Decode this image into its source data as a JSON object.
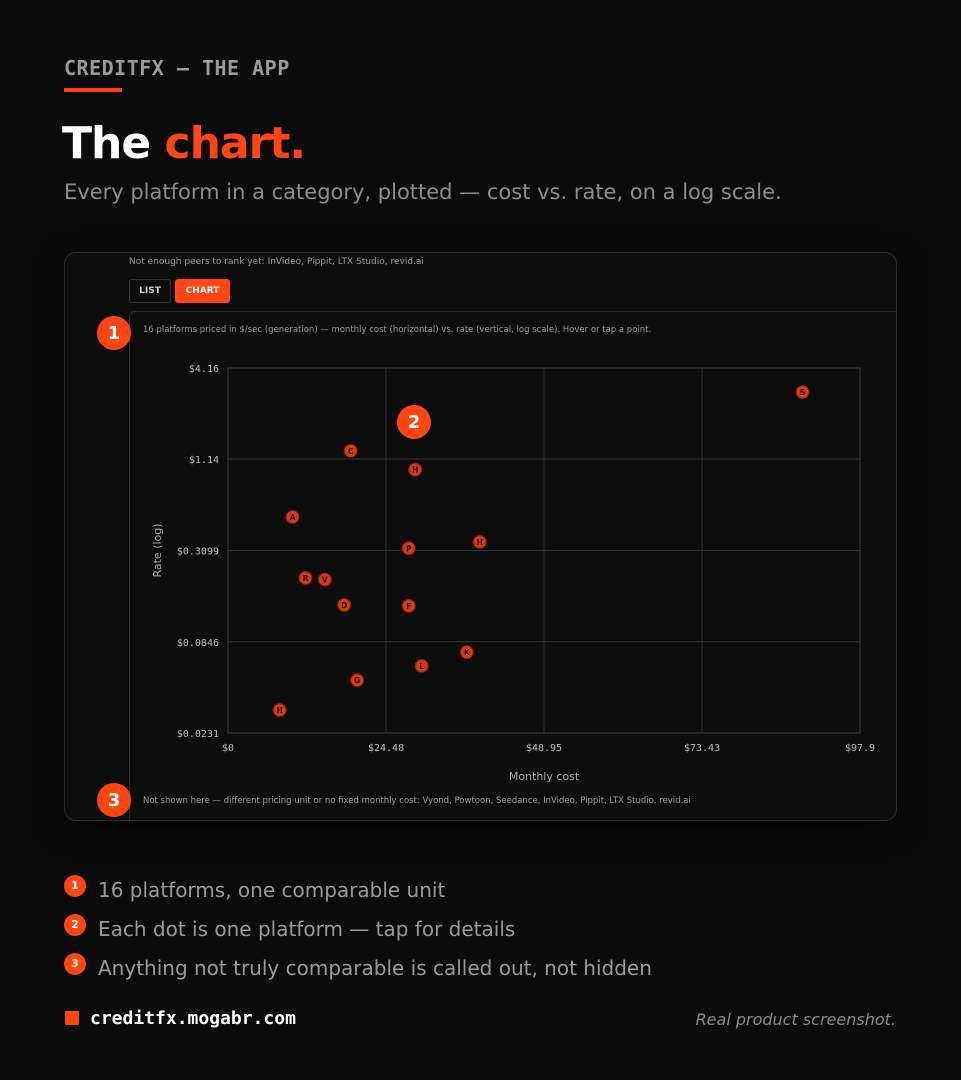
{
  "eyebrow": "CREDITFX — THE APP",
  "headline": {
    "lead": "The",
    "accent": "chart."
  },
  "subtitle": "Every platform in a category, plotted — cost vs. rate, on a log scale.",
  "screenshot": {
    "notice": "Not enough peers to rank yet: InVideo, Pippit, LTX Studio, revid.ai",
    "view_toggle": {
      "list_label": "LIST",
      "chart_label": "CHART",
      "active": "chart"
    },
    "caption": "16 platforms priced in $/sec (generation) — monthly cost (horizontal) vs. rate (vertical, log scale). Hover or tap a point.",
    "footnote": "Not shown here — different pricing unit or no fixed monthly cost: Vyond, Powtoon, Seedance, InVideo, Pippit, LTX Studio, revid.ai"
  },
  "callouts": [
    "1",
    "2",
    "3"
  ],
  "chart_data": {
    "type": "scatter",
    "xlabel": "Monthly cost",
    "ylabel": "Rate (log)",
    "x_scale": "linear",
    "y_scale": "log",
    "xlim": [
      0,
      97.9
    ],
    "ylim": [
      0.0231,
      4.16
    ],
    "x_ticks": [
      "$0",
      "$24.48",
      "$48.95",
      "$73.43",
      "$97.9"
    ],
    "x_tick_values": [
      0,
      24.48,
      48.95,
      73.43,
      97.9
    ],
    "y_ticks": [
      "$4.16",
      "$1.14",
      "$0.3099",
      "$0.0846",
      "$0.0231"
    ],
    "y_tick_values": [
      4.16,
      1.14,
      0.3099,
      0.0846,
      0.0231
    ],
    "grid": true,
    "marker_color": "#d93a12",
    "points": [
      {
        "label": "S",
        "x": 89.0,
        "y": 2.95
      },
      {
        "label": "C",
        "x": 19.0,
        "y": 1.28
      },
      {
        "label": "H",
        "x": 29.0,
        "y": 0.98
      },
      {
        "label": "A",
        "x": 10.0,
        "y": 0.5
      },
      {
        "label": "H",
        "x": 39.0,
        "y": 0.35
      },
      {
        "label": "P",
        "x": 28.0,
        "y": 0.32
      },
      {
        "label": "R",
        "x": 12.0,
        "y": 0.21
      },
      {
        "label": "V",
        "x": 15.0,
        "y": 0.205
      },
      {
        "label": "D",
        "x": 18.0,
        "y": 0.143
      },
      {
        "label": "F",
        "x": 28.0,
        "y": 0.141
      },
      {
        "label": "K",
        "x": 37.0,
        "y": 0.073
      },
      {
        "label": "L",
        "x": 30.0,
        "y": 0.06
      },
      {
        "label": "G",
        "x": 20.0,
        "y": 0.049
      },
      {
        "label": "H",
        "x": 8.0,
        "y": 0.032
      }
    ]
  },
  "highlights": [
    {
      "num": "1",
      "text": "16 platforms, one comparable unit"
    },
    {
      "num": "2",
      "text": "Each dot is one platform — tap for details"
    },
    {
      "num": "3",
      "text": "Anything not truly comparable is called out, not hidden"
    }
  ],
  "footer": {
    "url": "creditfx.mogabr.com",
    "note": "Real product screenshot."
  },
  "colors": {
    "background": "#0b0b0b",
    "accent": "#ff4512",
    "muted_text": "#9a9a9a"
  }
}
